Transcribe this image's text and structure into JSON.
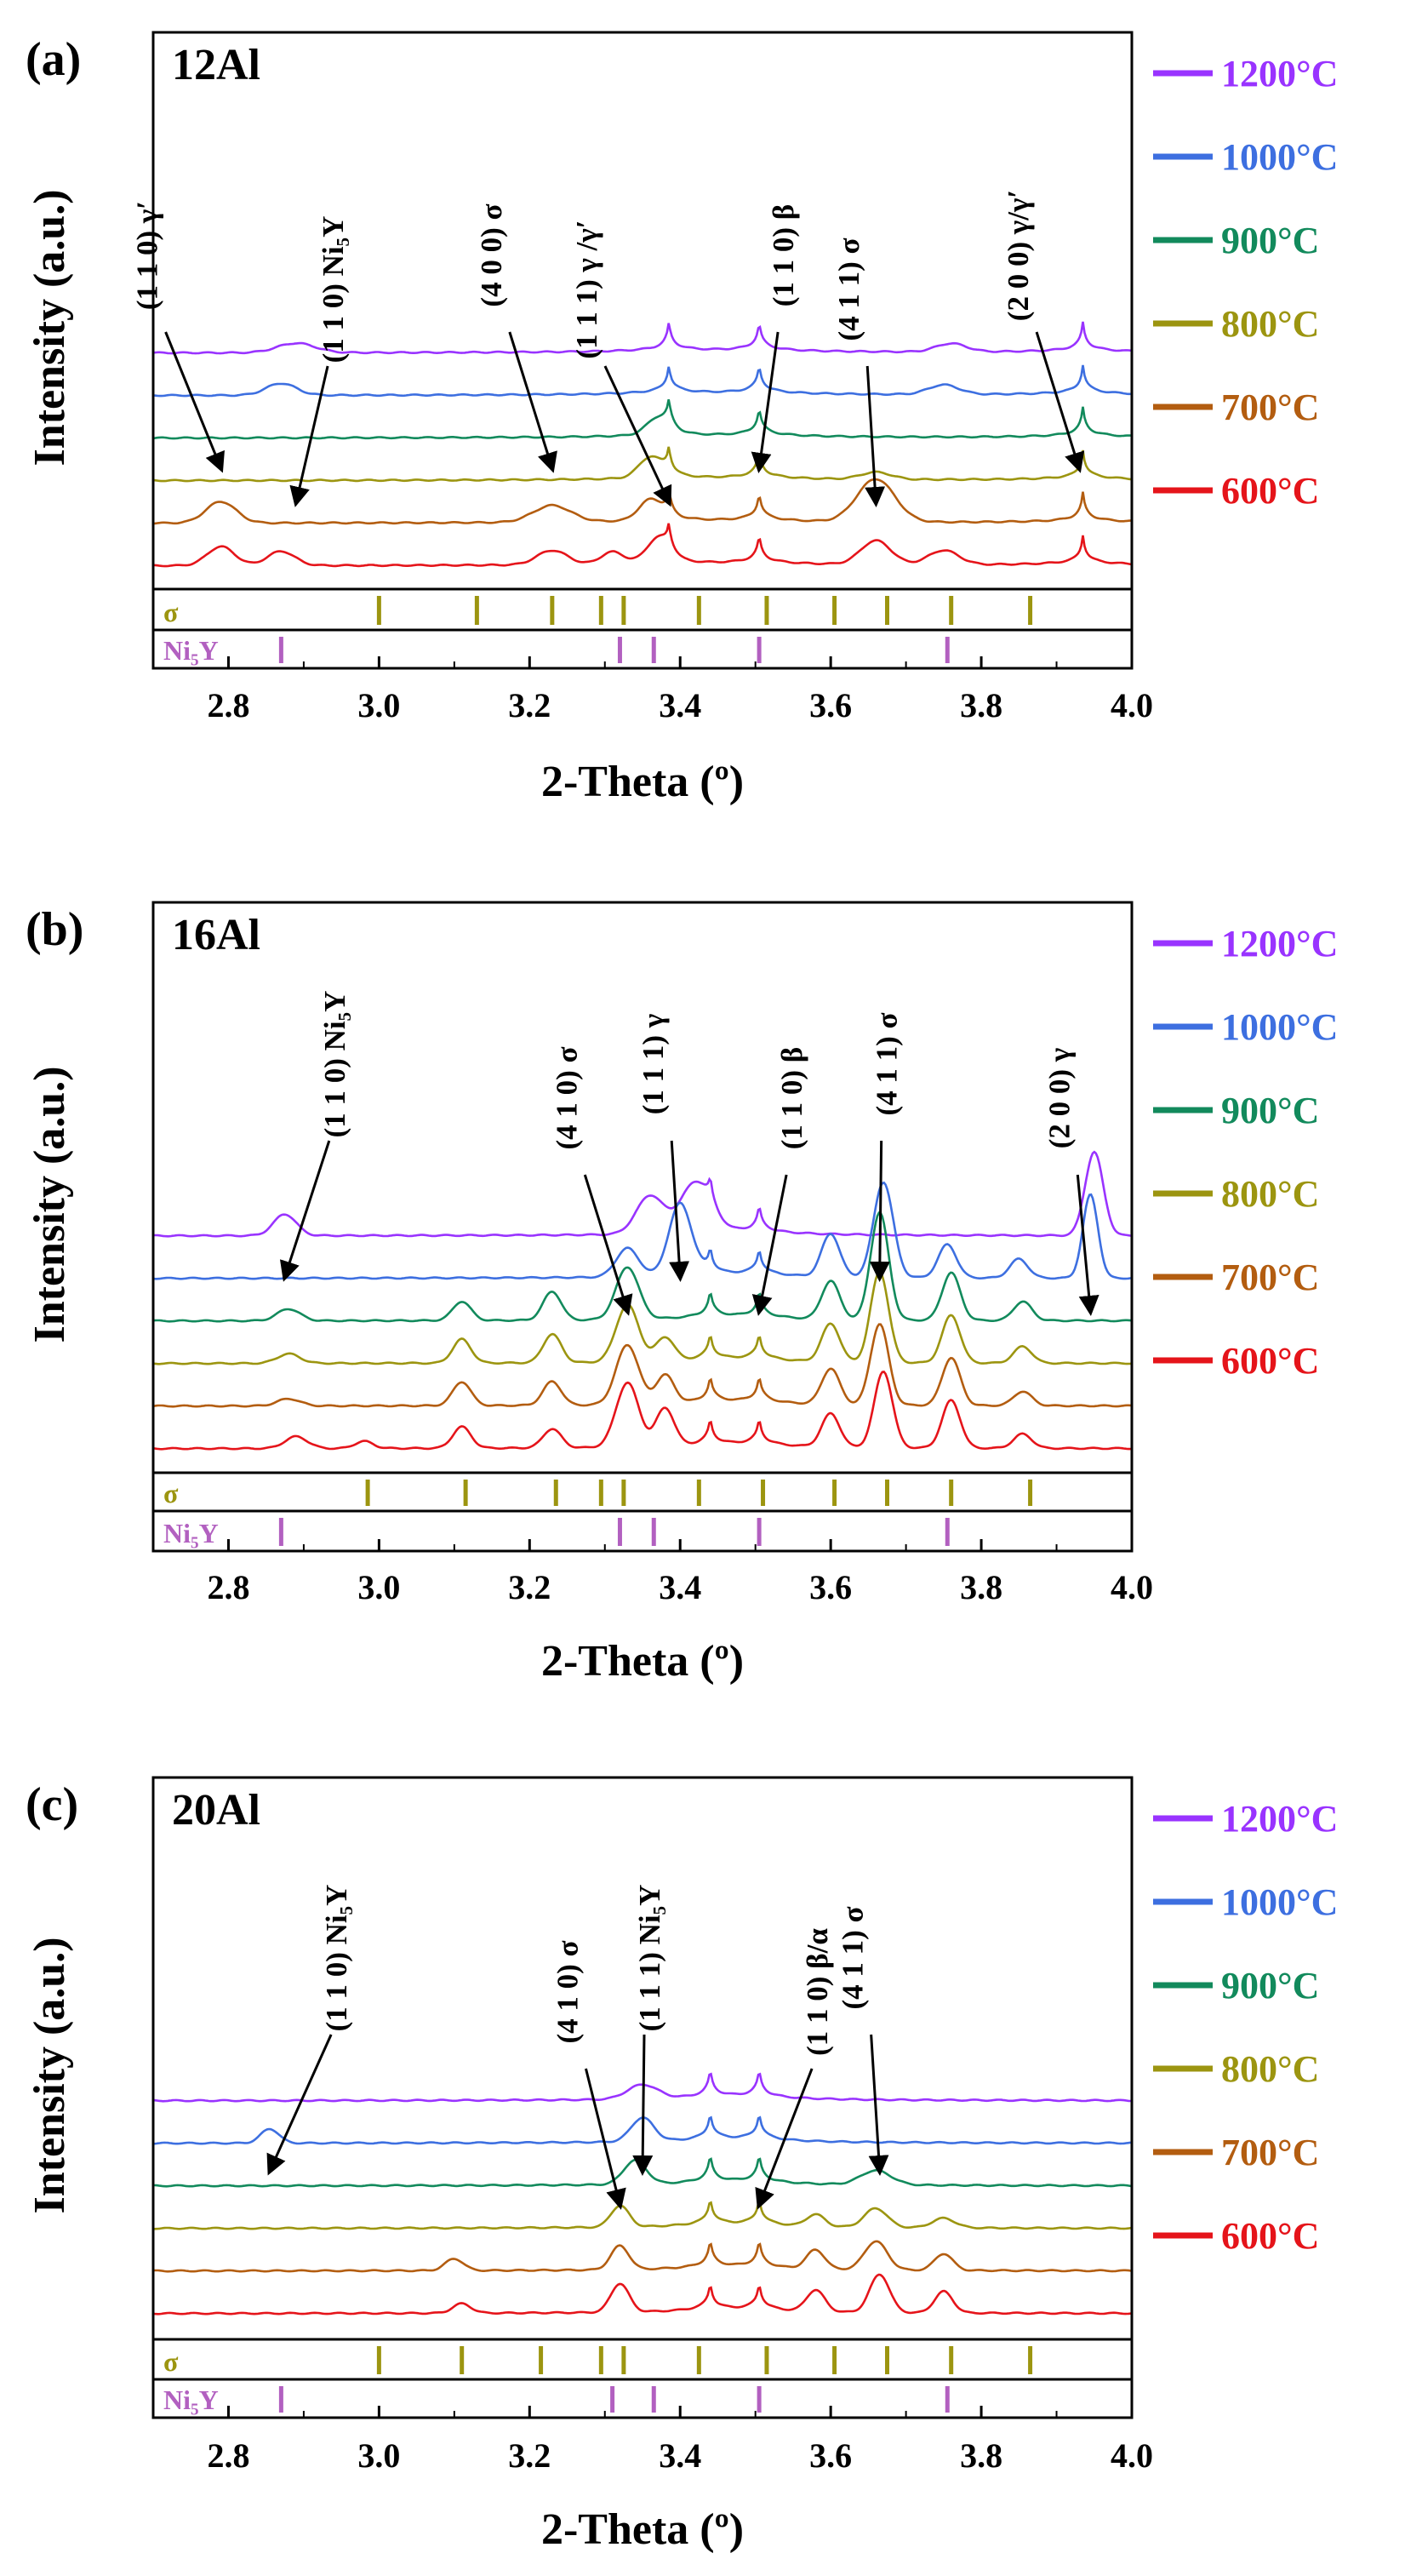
{
  "figure": {
    "colors": {
      "1200": "#9933ff",
      "1000": "#3d6fe0",
      "900": "#128a5c",
      "800": "#9c9510",
      "700": "#b35d10",
      "600": "#e5141a",
      "sigma_ref": "#9c9510",
      "ni5y_ref": "#b260c0"
    },
    "legend_shows_in_panels": [
      0,
      1,
      2
    ]
  },
  "chart_data": [
    {
      "type": "line",
      "panel_label": "(a)",
      "sample": "12Al",
      "xlabel": "2-Theta (º)",
      "ylabel": "Intensity (a.u.)",
      "xlim": [
        2.7,
        4.0
      ],
      "xticks": [
        "2.8",
        "3.0",
        "3.2",
        "3.4",
        "3.6",
        "3.8",
        "4.0"
      ],
      "legend_position": "right",
      "series": [
        {
          "name": "1200°C",
          "offset": 5,
          "peaks": [
            [
              2.89,
              0.4,
              0.025
            ],
            [
              3.76,
              0.35,
              0.02
            ]
          ]
        },
        {
          "name": "1000°C",
          "offset": 4,
          "peaks": [
            [
              2.87,
              0.5,
              0.02
            ],
            [
              3.75,
              0.4,
              0.02
            ]
          ]
        },
        {
          "name": "900°C",
          "offset": 3,
          "peaks": [
            [
              3.37,
              0.6,
              0.015
            ]
          ]
        },
        {
          "name": "800°C",
          "offset": 2,
          "peaks": [
            [
              3.36,
              0.8,
              0.015
            ],
            [
              3.66,
              0.3,
              0.02
            ]
          ]
        },
        {
          "name": "700°C",
          "offset": 1,
          "peaks": [
            [
              2.79,
              0.9,
              0.02
            ],
            [
              3.23,
              0.7,
              0.025
            ],
            [
              3.36,
              0.8,
              0.015
            ],
            [
              3.66,
              1.8,
              0.025
            ]
          ]
        },
        {
          "name": "600°C",
          "offset": 0,
          "peaks": [
            [
              2.79,
              0.8,
              0.018
            ],
            [
              2.87,
              0.6,
              0.018
            ],
            [
              3.23,
              0.6,
              0.02
            ],
            [
              3.31,
              0.5,
              0.015
            ],
            [
              3.37,
              0.9,
              0.015
            ],
            [
              3.66,
              1.0,
              0.02
            ],
            [
              3.75,
              0.6,
              0.02
            ]
          ]
        }
      ],
      "main_peaks": [
        3.385,
        3.505,
        3.935
      ],
      "annotations": [
        {
          "text": "(1 1 0) γ′",
          "peak": 2.79
        },
        {
          "text": "(1 1 0) Ni₅Y",
          "peak": 2.89
        },
        {
          "text": "(4 0 0) σ",
          "peak": 3.23
        },
        {
          "text": "(1 1 1) γ /γ′",
          "peak": 3.385
        },
        {
          "text": "(1 1 0) β",
          "peak": 3.505
        },
        {
          "text": "(4 1 1) σ",
          "peak": 3.66
        },
        {
          "text": "(2 0 0) γ/γ′",
          "peak": 3.93
        }
      ],
      "references": [
        {
          "name": "σ",
          "positions": [
            3.0,
            3.13,
            3.23,
            3.295,
            3.325,
            3.425,
            3.515,
            3.605,
            3.675,
            3.76,
            3.865
          ]
        },
        {
          "name": "Ni₅Y",
          "positions": [
            2.87,
            3.32,
            3.365,
            3.505,
            3.755
          ]
        }
      ]
    },
    {
      "type": "line",
      "panel_label": "(b)",
      "sample": "16Al",
      "xlabel": "2-Theta (º)",
      "ylabel": "Intensity (a.u.)",
      "xlim": [
        2.7,
        4.0
      ],
      "xticks": [
        "2.8",
        "3.0",
        "3.2",
        "3.4",
        "3.6",
        "3.8",
        "4.0"
      ],
      "legend_position": "right",
      "series": [
        {
          "name": "1200°C",
          "offset": 5,
          "peaks": [
            [
              2.875,
              0.9,
              0.015
            ],
            [
              3.36,
              1.6,
              0.018
            ],
            [
              3.42,
              2.0,
              0.02
            ],
            [
              3.95,
              3.5,
              0.012
            ]
          ]
        },
        {
          "name": "1000°C",
          "offset": 4,
          "peaks": [
            [
              3.33,
              1.2,
              0.015
            ],
            [
              3.4,
              3.0,
              0.015
            ],
            [
              3.6,
              1.8,
              0.012
            ],
            [
              3.67,
              4.0,
              0.013
            ],
            [
              3.755,
              1.4,
              0.012
            ],
            [
              3.85,
              0.8,
              0.012
            ],
            [
              3.945,
              3.5,
              0.01
            ]
          ]
        },
        {
          "name": "900°C",
          "offset": 3,
          "peaks": [
            [
              2.88,
              0.5,
              0.015
            ],
            [
              3.11,
              0.8,
              0.012
            ],
            [
              3.23,
              1.2,
              0.012
            ],
            [
              3.33,
              2.2,
              0.015
            ],
            [
              3.6,
              1.6,
              0.012
            ],
            [
              3.665,
              4.5,
              0.012
            ],
            [
              3.76,
              2.0,
              0.012
            ],
            [
              3.855,
              0.8,
              0.012
            ]
          ]
        },
        {
          "name": "800°C",
          "offset": 2,
          "peaks": [
            [
              2.88,
              0.4,
              0.015
            ],
            [
              3.11,
              1.0,
              0.012
            ],
            [
              3.23,
              1.2,
              0.012
            ],
            [
              3.33,
              2.4,
              0.015
            ],
            [
              3.38,
              1.0,
              0.012
            ],
            [
              3.6,
              1.6,
              0.012
            ],
            [
              3.665,
              3.8,
              0.012
            ],
            [
              3.76,
              2.0,
              0.012
            ],
            [
              3.855,
              0.7,
              0.012
            ]
          ]
        },
        {
          "name": "700°C",
          "offset": 1,
          "peaks": [
            [
              2.88,
              0.3,
              0.015
            ],
            [
              3.11,
              1.0,
              0.012
            ],
            [
              3.23,
              1.0,
              0.012
            ],
            [
              3.33,
              2.5,
              0.015
            ],
            [
              3.38,
              1.2,
              0.012
            ],
            [
              3.6,
              1.5,
              0.012
            ],
            [
              3.665,
              3.4,
              0.012
            ],
            [
              3.76,
              2.0,
              0.012
            ],
            [
              3.855,
              0.6,
              0.012
            ]
          ]
        },
        {
          "name": "600°C",
          "offset": 0,
          "peaks": [
            [
              2.89,
              0.5,
              0.015
            ],
            [
              2.98,
              0.3,
              0.012
            ],
            [
              3.11,
              0.9,
              0.012
            ],
            [
              3.23,
              0.8,
              0.012
            ],
            [
              3.33,
              2.7,
              0.015
            ],
            [
              3.38,
              1.6,
              0.012
            ],
            [
              3.6,
              1.4,
              0.012
            ],
            [
              3.67,
              3.2,
              0.012
            ],
            [
              3.76,
              2.0,
              0.012
            ],
            [
              3.855,
              0.6,
              0.012
            ]
          ]
        }
      ],
      "main_peaks": [
        3.44,
        3.505
      ],
      "annotations": [
        {
          "text": "(1 1 0) Ni₅Y",
          "peak": 2.875
        },
        {
          "text": "(4 1 0) σ",
          "peak": 3.33
        },
        {
          "text": "(1 1 1) γ",
          "peak": 3.4
        },
        {
          "text": "(1 1 0) β",
          "peak": 3.505
        },
        {
          "text": "(4 1 1) σ",
          "peak": 3.665
        },
        {
          "text": "(2 0 0) γ",
          "peak": 3.945
        }
      ],
      "references": [
        {
          "name": "σ",
          "positions": [
            2.985,
            3.115,
            3.235,
            3.295,
            3.325,
            3.425,
            3.51,
            3.605,
            3.675,
            3.76,
            3.865
          ]
        },
        {
          "name": "Ni₅Y",
          "positions": [
            2.87,
            3.32,
            3.365,
            3.505,
            3.755
          ]
        }
      ]
    },
    {
      "type": "line",
      "panel_label": "(c)",
      "sample": "20Al",
      "xlabel": "2-Theta (º)",
      "ylabel": "Intensity (a.u.)",
      "xlim": [
        2.7,
        4.0
      ],
      "xticks": [
        "2.8",
        "3.0",
        "3.2",
        "3.4",
        "3.6",
        "3.8",
        "4.0"
      ],
      "legend_position": "right",
      "series": [
        {
          "name": "1200°C",
          "offset": 5,
          "peaks": [
            [
              3.35,
              0.6,
              0.02
            ]
          ]
        },
        {
          "name": "1000°C",
          "offset": 4,
          "peaks": [
            [
              2.855,
              0.6,
              0.012
            ],
            [
              3.35,
              1.0,
              0.015
            ]
          ]
        },
        {
          "name": "900°C",
          "offset": 3,
          "peaks": [
            [
              3.34,
              1.0,
              0.015
            ],
            [
              3.66,
              0.6,
              0.02
            ]
          ]
        },
        {
          "name": "800°C",
          "offset": 2,
          "peaks": [
            [
              3.32,
              0.9,
              0.012
            ],
            [
              3.58,
              0.5,
              0.012
            ],
            [
              3.66,
              0.8,
              0.015
            ],
            [
              3.75,
              0.4,
              0.015
            ]
          ]
        },
        {
          "name": "700°C",
          "offset": 1,
          "peaks": [
            [
              3.1,
              0.5,
              0.012
            ],
            [
              3.32,
              1.0,
              0.012
            ],
            [
              3.58,
              0.8,
              0.012
            ],
            [
              3.66,
              1.2,
              0.015
            ],
            [
              3.75,
              0.7,
              0.012
            ]
          ]
        },
        {
          "name": "600°C",
          "offset": 0,
          "peaks": [
            [
              3.11,
              0.4,
              0.012
            ],
            [
              3.32,
              1.2,
              0.012
            ],
            [
              3.58,
              0.9,
              0.012
            ],
            [
              3.665,
              1.6,
              0.013
            ],
            [
              3.75,
              0.9,
              0.012
            ]
          ]
        }
      ],
      "main_peaks": [
        3.44,
        3.505
      ],
      "annotations": [
        {
          "text": "(1 1 0) Ni₅Y",
          "peak": 2.855
        },
        {
          "text": "(4 1 0) σ",
          "peak": 3.32
        },
        {
          "text": "(1 1 1) Ni₅Y",
          "peak": 3.35
        },
        {
          "text": "(1 1 0) β/α",
          "peak": 3.505
        },
        {
          "text": "(4 1 1) σ",
          "peak": 3.665
        }
      ],
      "references": [
        {
          "name": "σ",
          "positions": [
            3.0,
            3.11,
            3.215,
            3.295,
            3.325,
            3.425,
            3.515,
            3.605,
            3.675,
            3.76,
            3.865
          ]
        },
        {
          "name": "Ni₅Y",
          "positions": [
            2.87,
            3.31,
            3.365,
            3.505,
            3.755
          ]
        }
      ]
    }
  ]
}
